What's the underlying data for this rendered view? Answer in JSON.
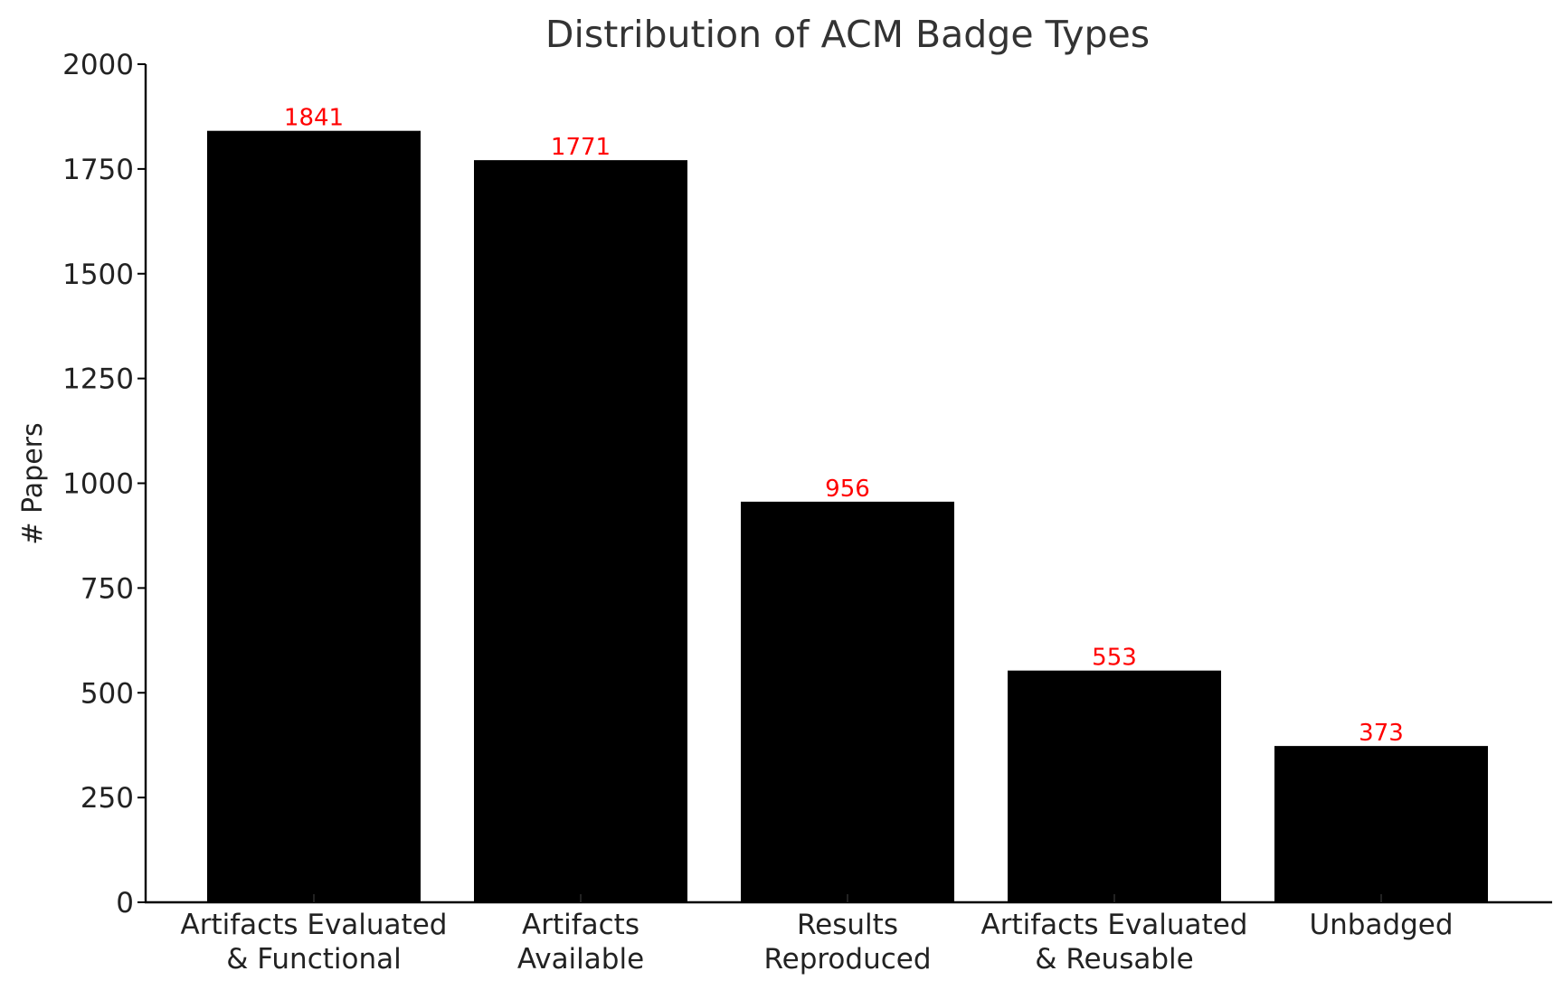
{
  "chart_data": {
    "type": "bar",
    "title": "Distribution of ACM Badge Types",
    "xlabel": "",
    "ylabel": "# Papers",
    "ylim": [
      0,
      2000
    ],
    "yticks": [
      0,
      250,
      500,
      750,
      1000,
      1250,
      1500,
      1750,
      2000
    ],
    "categories": [
      [
        "Artifacts Evaluated",
        "& Functional"
      ],
      [
        "Artifacts",
        "Available"
      ],
      [
        "Results",
        "Reproduced"
      ],
      [
        "Artifacts Evaluated",
        "& Reusable"
      ],
      [
        "Unbadged"
      ]
    ],
    "values": [
      1841,
      1771,
      956,
      553,
      373
    ],
    "data_labels": [
      "1841",
      "1771",
      "956",
      "553",
      "373"
    ],
    "bar_color": "#000000",
    "label_color": "#ff0000",
    "grid": false,
    "legend": "none"
  }
}
